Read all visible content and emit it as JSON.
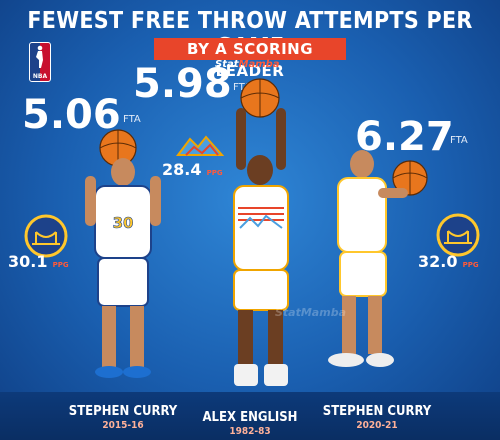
{
  "title": "FEWEST FREE THROW ATTEMPTS PER GAME",
  "subtitle": "BY A SCORING LEADER",
  "brand": {
    "part1": "Stat",
    "part2": "Mamba"
  },
  "nba_logo_text": "NBA",
  "watermark": "StatMamba",
  "players": [
    {
      "name": "STEPHEN CURRY",
      "season": "2015-16",
      "fta": "5.06",
      "fta_unit": "FTA",
      "ppg": "30.1",
      "ppg_unit": "PPG",
      "team_logo": "warriors-logo-icon",
      "jersey_color": "#ffffff",
      "trim_color": "#1d428a"
    },
    {
      "name": "ALEX ENGLISH",
      "season": "1982-83",
      "fta": "5.98",
      "fta_unit": "FTA",
      "ppg": "28.4",
      "ppg_unit": "PPG",
      "team_logo": "nuggets-logo-icon",
      "jersey_color": "#ffffff",
      "trim_color": "#f0a500"
    },
    {
      "name": "STEPHEN CURRY",
      "season": "2020-21",
      "fta": "6.27",
      "fta_unit": "FTA",
      "ppg": "32.0",
      "ppg_unit": "PPG",
      "team_logo": "warriors-logo-icon",
      "jersey_color": "#ffffff",
      "trim_color": "#ffc72c"
    }
  ],
  "colors": {
    "accent": "#e8452a",
    "background": "#1a5fb0",
    "text": "#ffffff"
  }
}
